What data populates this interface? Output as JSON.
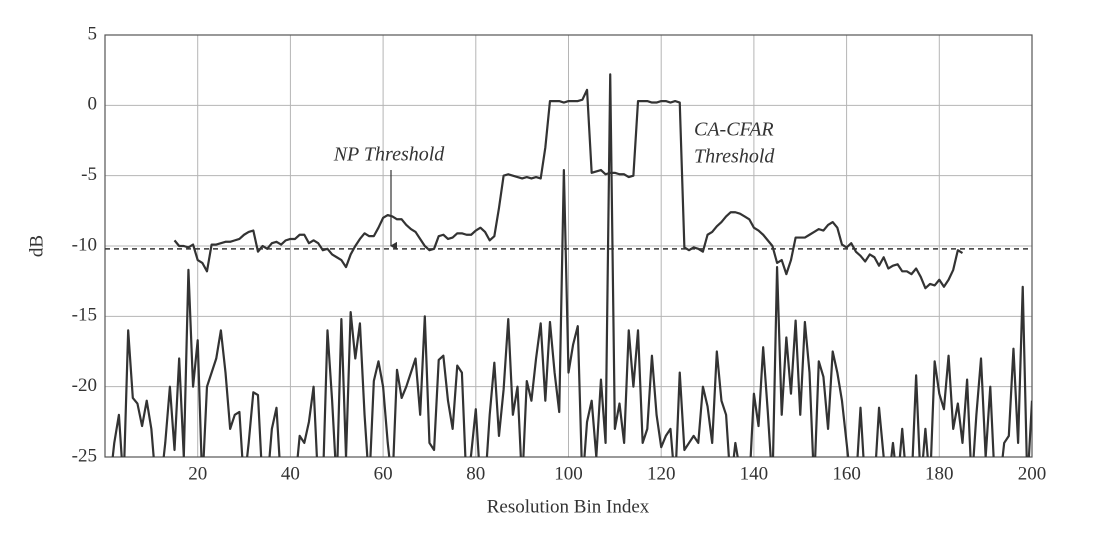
{
  "chart_data": {
    "type": "line",
    "xlabel": "Resolution Bin Index",
    "ylabel": "dB",
    "x": [
      1,
      2,
      3,
      4,
      5,
      6,
      7,
      8,
      9,
      10,
      11,
      12,
      13,
      14,
      15,
      16,
      17,
      18,
      19,
      20,
      21,
      22,
      23,
      24,
      25,
      26,
      27,
      28,
      29,
      30,
      31,
      32,
      33,
      34,
      35,
      36,
      37,
      38,
      39,
      40,
      41,
      42,
      43,
      44,
      45,
      46,
      47,
      48,
      49,
      50,
      51,
      52,
      53,
      54,
      55,
      56,
      57,
      58,
      59,
      60,
      61,
      62,
      63,
      64,
      65,
      66,
      67,
      68,
      69,
      70,
      71,
      72,
      73,
      74,
      75,
      76,
      77,
      78,
      79,
      80,
      81,
      82,
      83,
      84,
      85,
      86,
      87,
      88,
      89,
      90,
      91,
      92,
      93,
      94,
      95,
      96,
      97,
      98,
      99,
      100,
      101,
      102,
      103,
      104,
      105,
      106,
      107,
      108,
      109,
      110,
      111,
      112,
      113,
      114,
      115,
      116,
      117,
      118,
      119,
      120,
      121,
      122,
      123,
      124,
      125,
      126,
      127,
      128,
      129,
      130,
      131,
      132,
      133,
      134,
      135,
      136,
      137,
      138,
      139,
      140,
      141,
      142,
      143,
      144,
      145,
      146,
      147,
      148,
      149,
      150,
      151,
      152,
      153,
      154,
      155,
      156,
      157,
      158,
      159,
      160,
      161,
      162,
      163,
      164,
      165,
      166,
      167,
      168,
      169,
      170,
      171,
      172,
      173,
      174,
      175,
      176,
      177,
      178,
      179,
      180,
      181,
      182,
      183,
      184,
      185,
      186,
      187,
      188,
      189,
      190,
      191,
      192,
      193,
      194,
      195,
      196,
      197,
      198,
      199,
      200
    ],
    "series": [
      {
        "color": "#333333",
        "values": [
          -27,
          -24,
          -22,
          -27,
          -16,
          -20.8,
          -21.2,
          -22.8,
          -21,
          -23,
          -27,
          -27,
          -24,
          -20,
          -24.5,
          -18,
          -25,
          -11.7,
          -20,
          -16.7,
          -27,
          -20,
          -19,
          -18,
          -16,
          -19,
          -23,
          -22,
          -21.8,
          -27,
          -24,
          -20.4,
          -20.6,
          -27,
          -27,
          -23,
          -21.5,
          -27,
          -27,
          -27,
          -27,
          -23.5,
          -24,
          -22.5,
          -20,
          -27,
          -27,
          -16,
          -21,
          -27,
          -15.2,
          -25,
          -14.7,
          -18,
          -15.5,
          -22,
          -27,
          -19.6,
          -18.2,
          -20,
          -24,
          -27,
          -18.8,
          -20.8,
          -20,
          -19,
          -18,
          -22,
          -15,
          -24,
          -24.5,
          -18.1,
          -17.8,
          -21,
          -23,
          -18.5,
          -19,
          -27,
          -24.8,
          -21.6,
          -27,
          -27,
          -22,
          -18.3,
          -23.5,
          -20.2,
          -15.2,
          -22,
          -20,
          -27,
          -19.6,
          -21,
          -18,
          -15.5,
          -21,
          -15.4,
          -19,
          -21.8,
          -4.6,
          -19,
          -17,
          -15.7,
          -27,
          -22.5,
          -21,
          -25,
          -19.5,
          -24,
          2.2,
          -23,
          -21.2,
          -24,
          -16,
          -20,
          -16,
          -24,
          -23,
          -17.8,
          -22,
          -24.3,
          -23.5,
          -23,
          -27,
          -19,
          -24.5,
          -24,
          -23.5,
          -24,
          -20,
          -21.4,
          -24,
          -17.5,
          -21,
          -22,
          -27,
          -24,
          -26,
          -27,
          -27,
          -20.5,
          -22.8,
          -17.2,
          -21.8,
          -27,
          -11.5,
          -22,
          -16.5,
          -20.5,
          -15.3,
          -22,
          -15.4,
          -19,
          -27,
          -18.2,
          -19.3,
          -23,
          -17.5,
          -19,
          -21,
          -24,
          -27,
          -27,
          -21.5,
          -27,
          -27,
          -27,
          -21.5,
          -25,
          -27,
          -24,
          -27,
          -23,
          -27,
          -27,
          -19.2,
          -27,
          -23,
          -27,
          -18.2,
          -20.5,
          -21.6,
          -17.8,
          -23,
          -21.2,
          -24,
          -19.5,
          -27,
          -22,
          -18,
          -25,
          -20,
          -27,
          -27,
          -24,
          -23.5,
          -17.3,
          -24,
          -12.9,
          -27,
          -21
        ]
      },
      {
        "color": "#333333",
        "values": [
          null,
          null,
          null,
          null,
          null,
          null,
          null,
          null,
          null,
          null,
          null,
          null,
          null,
          null,
          -9.6,
          -10,
          -10,
          -10.1,
          -9.9,
          -11,
          -11.2,
          -11.8,
          -9.9,
          -9.9,
          -9.8,
          -9.7,
          -9.7,
          -9.6,
          -9.5,
          -9.2,
          -9,
          -8.9,
          -10.4,
          -10,
          -10.2,
          -9.8,
          -9.7,
          -9.9,
          -9.6,
          -9.5,
          -9.5,
          -9.2,
          -9.2,
          -9.8,
          -9.6,
          -9.8,
          -10.3,
          -10.2,
          -10.6,
          -10.8,
          -11,
          -11.5,
          -10.6,
          -10,
          -9.5,
          -9.1,
          -9.3,
          -9.3,
          -8.7,
          -8,
          -7.8,
          -7.9,
          -8.1,
          -8.1,
          -8.5,
          -8.8,
          -9,
          -9.5,
          -10,
          -10.3,
          -10.2,
          -9.3,
          -9.2,
          -9.5,
          -9.4,
          -9.1,
          -9.1,
          -9.2,
          -9.2,
          -8.9,
          -8.7,
          -9,
          -9.6,
          -9.3,
          -7.3,
          -5,
          -4.9,
          -5,
          -5.1,
          -5.2,
          -5.1,
          -5.2,
          -5.1,
          -5.2,
          -3,
          0.3,
          0.3,
          0.3,
          0.2,
          0.3,
          0.3,
          0.3,
          0.4,
          1.1,
          -4.8,
          -4.7,
          -4.6,
          -4.9,
          -4.8,
          -4.8,
          -4.9,
          -4.9,
          -5.1,
          -5,
          0.3,
          0.3,
          0.3,
          0.2,
          0.2,
          0.3,
          0.3,
          0.2,
          0.3,
          0.2,
          -10.1,
          -10.3,
          -10.1,
          -10.2,
          -10.4,
          -9.2,
          -9,
          -8.6,
          -8.3,
          -7.9,
          -7.6,
          -7.6,
          -7.7,
          -7.9,
          -8.1,
          -8.7,
          -8.9,
          -9.2,
          -9.6,
          -10,
          -11.2,
          -11,
          -12,
          -11,
          -9.4,
          -9.4,
          -9.4,
          -9.2,
          -9,
          -8.8,
          -8.9,
          -8.5,
          -8.3,
          -8.7,
          -9.9,
          -10.1,
          -9.8,
          -10.4,
          -10.7,
          -11.1,
          -10.6,
          -10.8,
          -11.4,
          -10.8,
          -11.6,
          -11.4,
          -11.3,
          -11.8,
          -11.8,
          -12,
          -11.6,
          -12.2,
          -13,
          -12.7,
          -12.8,
          -12.4,
          -12.9,
          -12.4,
          -11.7,
          -10.3,
          -10.5,
          null,
          null,
          null,
          null,
          null,
          null,
          null,
          null,
          null,
          null,
          null,
          null,
          null,
          null,
          null
        ]
      }
    ],
    "np_threshold": -10.2,
    "annotations": {
      "np": "NP Threshold",
      "cfar": [
        "CA-CFAR",
        "Threshold"
      ]
    },
    "xlim": [
      0,
      200
    ],
    "xticks": [
      20,
      40,
      60,
      80,
      100,
      120,
      140,
      160,
      180,
      200
    ],
    "ylim": [
      -25,
      5
    ],
    "yticks": [
      -25,
      -20,
      -15,
      -10,
      -5,
      0,
      5
    ],
    "grid": true
  }
}
